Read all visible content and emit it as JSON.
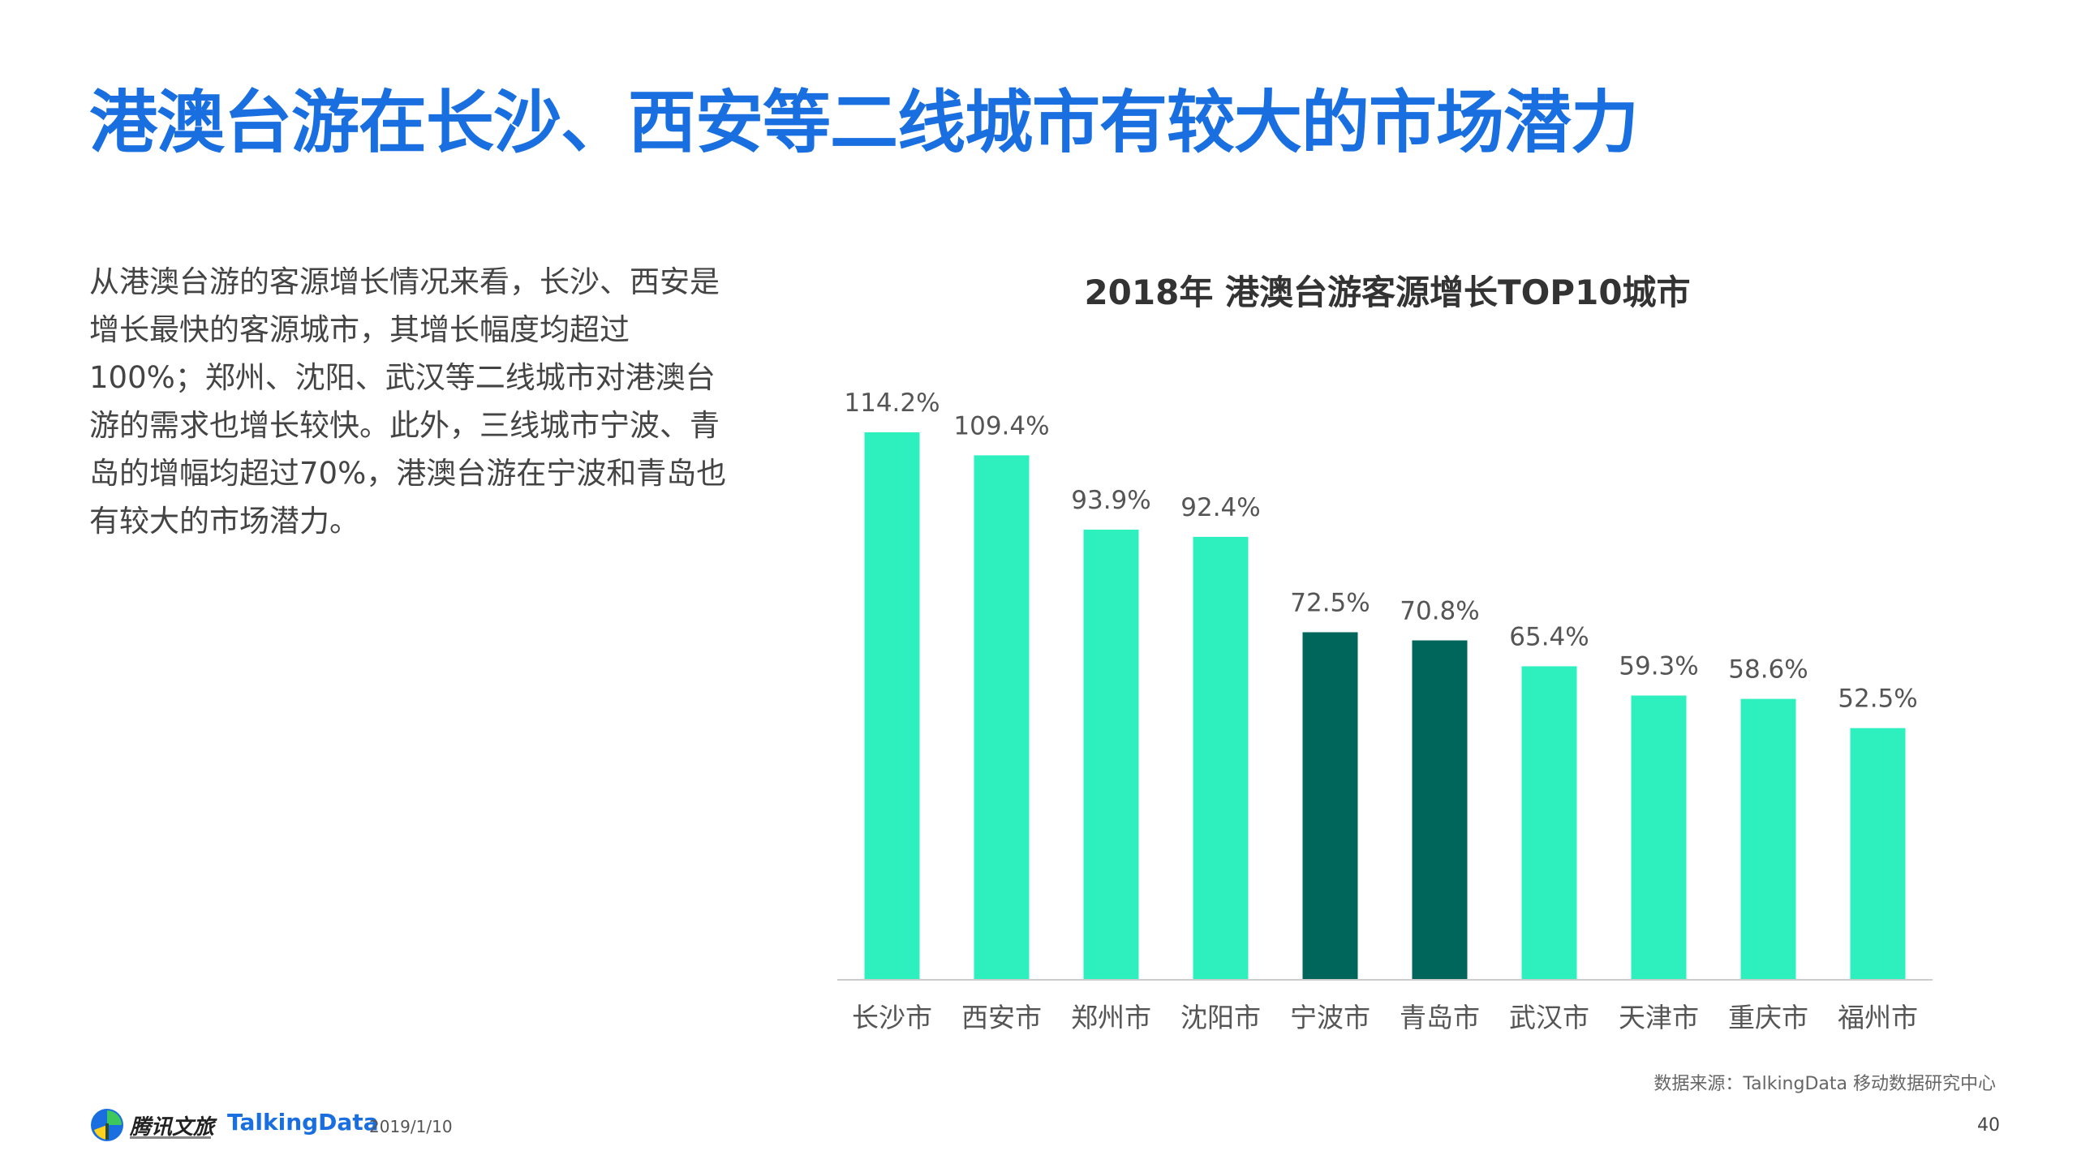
{
  "header": {
    "title": "港澳台游在长沙、西安等二线城市有较大的市场潜力",
    "title_color": "#1a6fe0"
  },
  "description": "从港澳台游的客源增长情况来看，长沙、西安是增长最快的客源城市，其增长幅度均超过100%；郑州、沈阳、武汉等二线城市对港澳台游的需求也增长较快。此外，三线城市宁波、青岛的增幅均超过70%，港澳台游在宁波和青岛也有较大的市场潜力。",
  "chart_data": {
    "type": "bar",
    "title": "2018年 港澳台游客源增长TOP10城市",
    "categories": [
      "长沙市",
      "西安市",
      "郑州市",
      "沈阳市",
      "宁波市",
      "青岛市",
      "武汉市",
      "天津市",
      "重庆市",
      "福州市"
    ],
    "values": [
      114.2,
      109.4,
      93.9,
      92.4,
      72.5,
      70.8,
      65.4,
      59.3,
      58.6,
      52.5
    ],
    "value_labels": [
      "114.2%",
      "109.4%",
      "93.9%",
      "92.4%",
      "72.5%",
      "70.8%",
      "65.4%",
      "59.3%",
      "58.6%",
      "52.5%"
    ],
    "ylim": [
      0,
      114.2
    ],
    "xlabel": "",
    "ylabel": "",
    "grid": false,
    "colors": {
      "default": "#2ef0bf",
      "highlight": "#00655a",
      "axis": "#cccccc"
    },
    "highlight_indices": [
      4,
      5
    ]
  },
  "source": "数据来源：TalkingData 移动数据研究中心",
  "footer": {
    "logo_1": "腾讯文旅",
    "logo_1_icon": "tencent-culture-tourism-logo-icon",
    "logo_2": "TalkingData",
    "date": "2019/1/10"
  },
  "page_number": "40"
}
